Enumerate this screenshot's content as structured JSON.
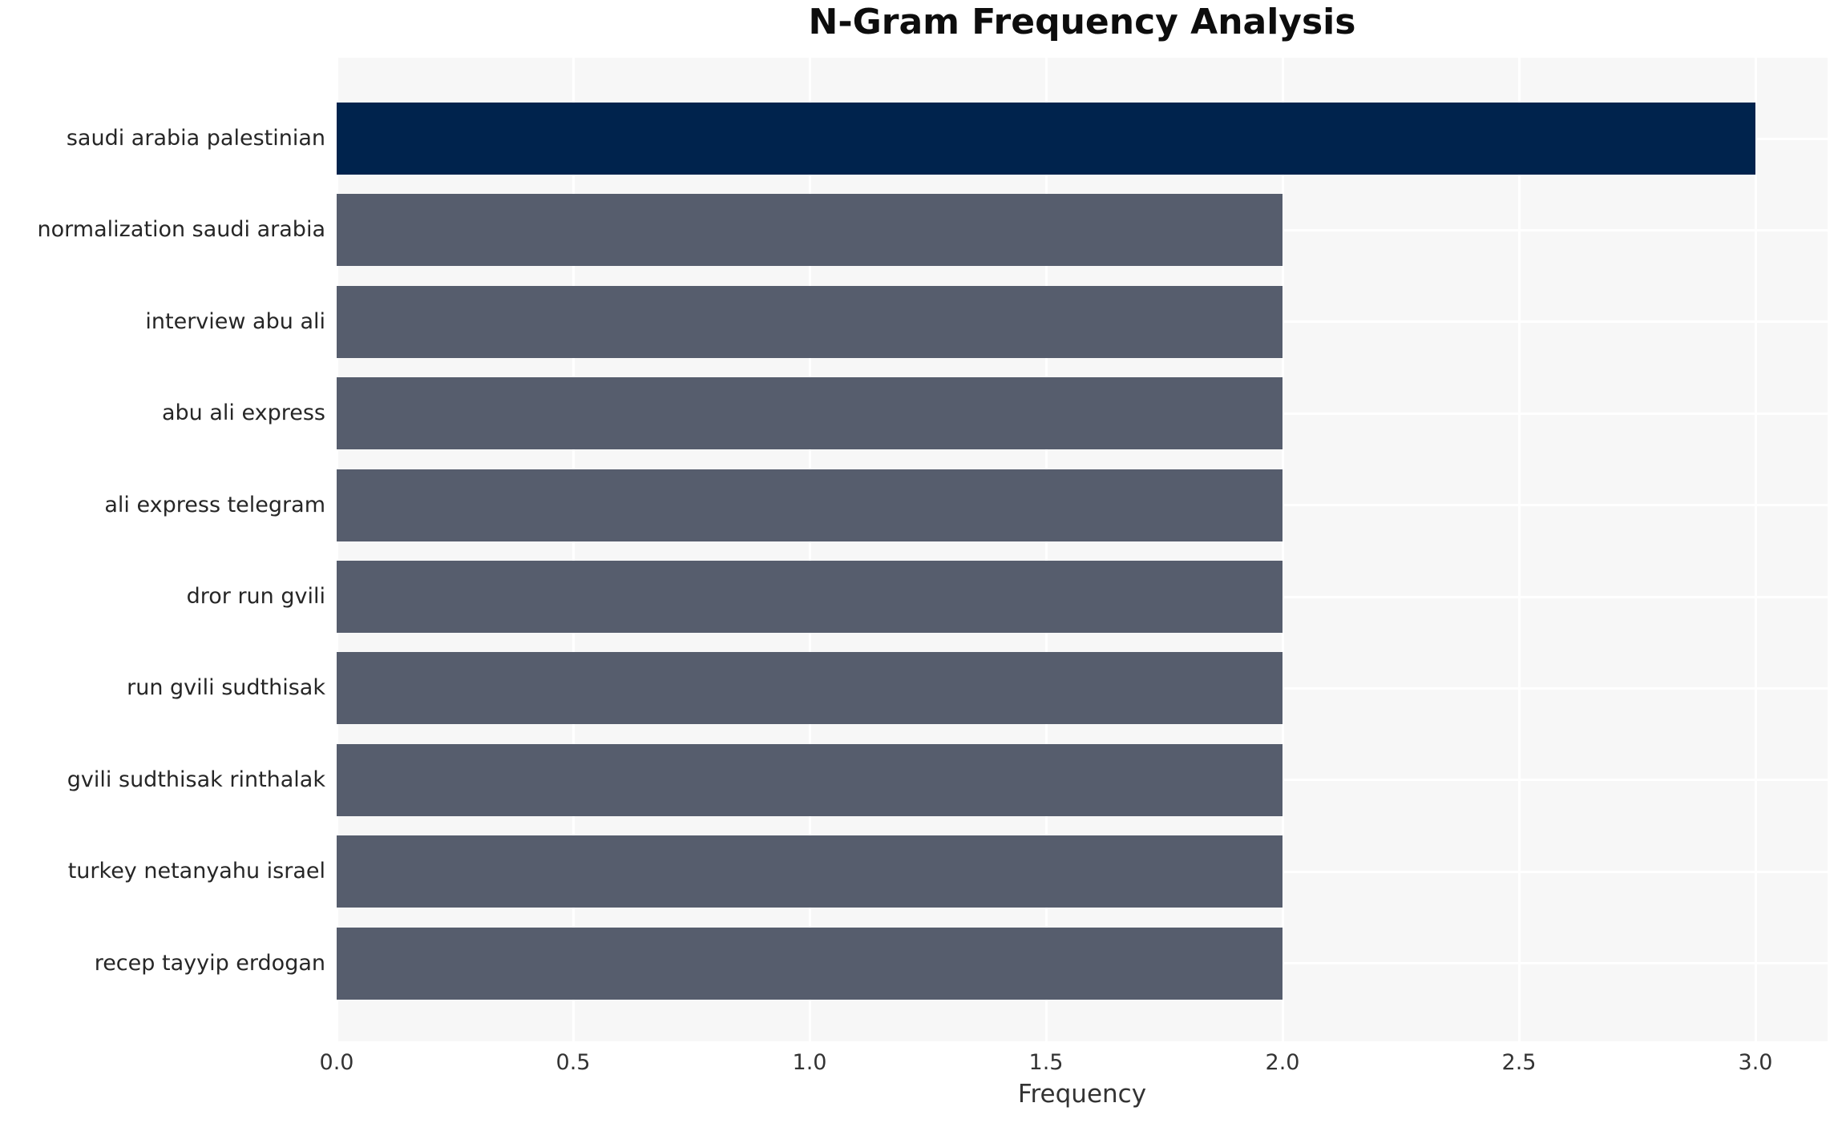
{
  "title": "N-Gram Frequency Analysis",
  "chart_data": {
    "type": "bar",
    "orientation": "horizontal",
    "title": "N-Gram Frequency Analysis",
    "xlabel": "Frequency",
    "ylabel": "",
    "categories": [
      "saudi arabia palestinian",
      "normalization saudi arabia",
      "interview abu ali",
      "abu ali express",
      "ali express telegram",
      "dror run gvili",
      "run gvili sudthisak",
      "gvili sudthisak rinthalak",
      "turkey netanyahu israel",
      "recep tayyip erdogan"
    ],
    "values": [
      3,
      2,
      2,
      2,
      2,
      2,
      2,
      2,
      2,
      2
    ],
    "bar_colors": [
      "#00234d",
      "#565d6d",
      "#565d6d",
      "#565d6d",
      "#565d6d",
      "#565d6d",
      "#565d6d",
      "#565d6d",
      "#565d6d",
      "#565d6d"
    ],
    "xticks": [
      0.0,
      0.5,
      1.0,
      1.5,
      2.0,
      2.5,
      3.0
    ],
    "xtick_labels": [
      "0.0",
      "0.5",
      "1.0",
      "1.5",
      "2.0",
      "2.5",
      "3.0"
    ],
    "xlim": [
      0,
      3.15
    ],
    "grid": true,
    "legend": false,
    "colors": {
      "highlight_bar": "#00234d",
      "default_bar": "#565d6d",
      "plot_background": "#f7f7f7",
      "gridline": "#ffffff",
      "title_text": "#0d0d0d",
      "axis_text": "#333333",
      "label_text": "#262626"
    }
  }
}
